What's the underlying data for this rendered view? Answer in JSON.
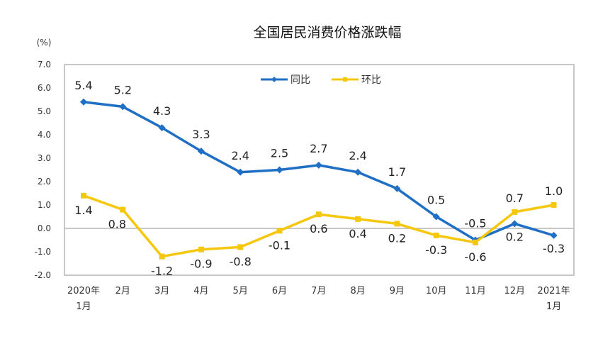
{
  "chart_data": {
    "type": "line",
    "title": "全国居民消费价格涨跌幅",
    "ylabel": "(%)",
    "ylim": [
      -2.0,
      7.0
    ],
    "yticks": [
      "7.0",
      "6.0",
      "5.0",
      "4.0",
      "3.0",
      "2.0",
      "1.0",
      "0.0",
      "-1.0",
      "-2.0"
    ],
    "categories": [
      "2020年\n1月",
      "2月",
      "3月",
      "4月",
      "5月",
      "6月",
      "7月",
      "8月",
      "9月",
      "10月",
      "11月",
      "12月",
      "2021年\n1月"
    ],
    "series": [
      {
        "name": "同比",
        "color": "#1f6fc4",
        "marker": "diamond",
        "values": [
          5.4,
          5.2,
          4.3,
          3.3,
          2.4,
          2.5,
          2.7,
          2.4,
          1.7,
          0.5,
          -0.5,
          0.2,
          -0.3
        ]
      },
      {
        "name": "环比",
        "color": "#f5c70f",
        "marker": "square",
        "values": [
          1.4,
          0.8,
          -1.2,
          -0.9,
          -0.8,
          -0.1,
          0.6,
          0.4,
          0.2,
          -0.3,
          -0.6,
          0.7,
          1.0
        ]
      }
    ],
    "legend": "top-center",
    "grid": false
  }
}
